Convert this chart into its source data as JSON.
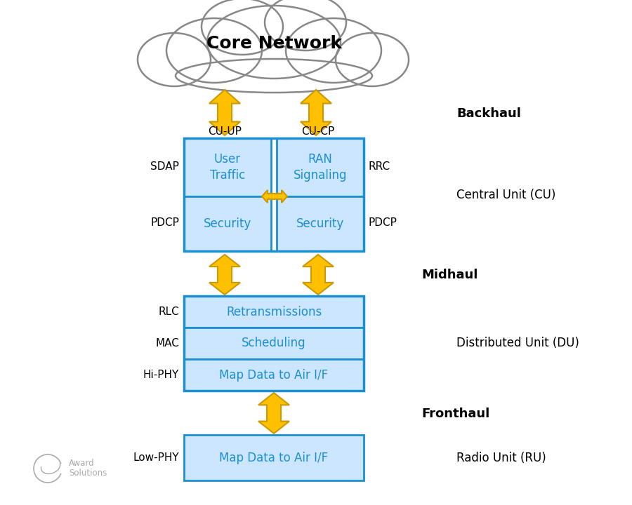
{
  "bg_color": "#ffffff",
  "box_fill_light": "#cce6ff",
  "box_border": "#1a8fd1",
  "arrow_color": "#ffc000",
  "arrow_edge": "#cc9900",
  "text_blue": "#1a8fd1",
  "text_black": "#000000",
  "text_gray": "#aaaaaa",
  "cloud_fill": "#ffffff",
  "cloud_edge": "#888888",
  "title": "Core Network",
  "backhaul_label": "Backhaul",
  "midhaul_label": "Midhaul",
  "fronthaul_label": "Fronthaul",
  "cu_label": "Central Unit (CU)",
  "du_label": "Distributed Unit (DU)",
  "ru_label": "Radio Unit (RU)",
  "cu_up_label": "CU-UP",
  "cu_cp_label": "CU-CP",
  "sdap_label": "SDAP",
  "pdcp_left_label": "PDCP",
  "rrc_label": "RRC",
  "pdcp_right_label": "PDCP",
  "rlc_label": "RLC",
  "mac_label": "MAC",
  "hiphy_label": "Hi-PHY",
  "lowphy_label": "Low-PHY",
  "box_user_traffic": "User\nTraffic",
  "box_ran_signaling": "RAN\nSignaling",
  "box_security_left": "Security",
  "box_security_right": "Security",
  "box_retransmissions": "Retransmissions",
  "box_scheduling": "Scheduling",
  "box_map_du": "Map Data to Air I/F",
  "box_map_ru": "Map Data to Air I/F",
  "award_text": "Award\nSolutions"
}
